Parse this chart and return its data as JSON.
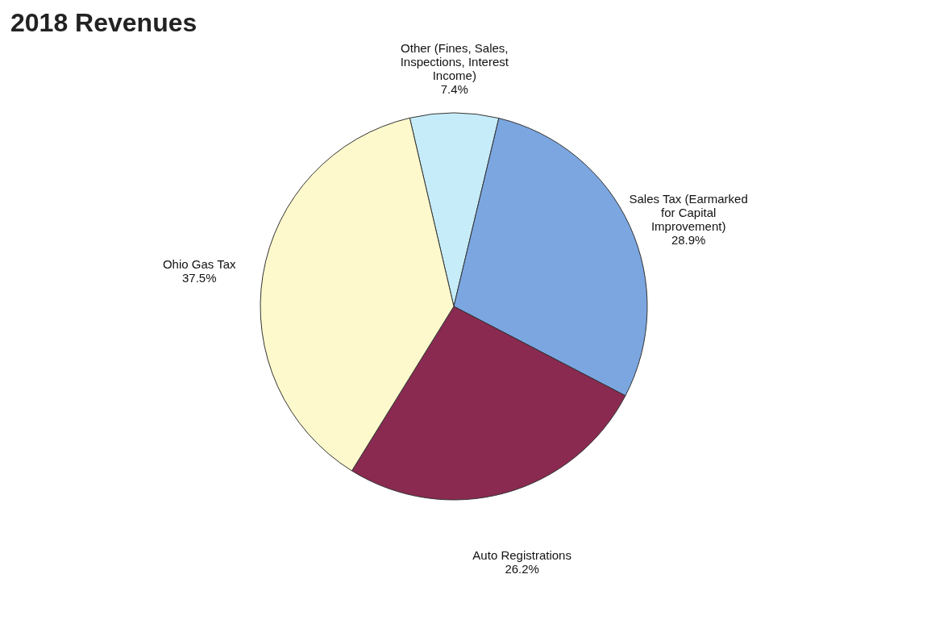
{
  "chart_data": {
    "type": "pie",
    "title": "2018 Revenues",
    "categories": [
      "Other (Fines, Sales, Inspections, Interest Income)",
      "Sales Tax (Earmarked for Capital Improvement)",
      "Auto Registrations",
      "Ohio Gas Tax"
    ],
    "values": [
      7.4,
      28.9,
      26.2,
      37.5
    ],
    "value_labels": [
      "7.4%",
      "28.9%",
      "26.2%",
      "37.5%"
    ],
    "colors": [
      "#c6ecf9",
      "#7ba6e0",
      "#8a2a50",
      "#fdf9cc"
    ]
  }
}
